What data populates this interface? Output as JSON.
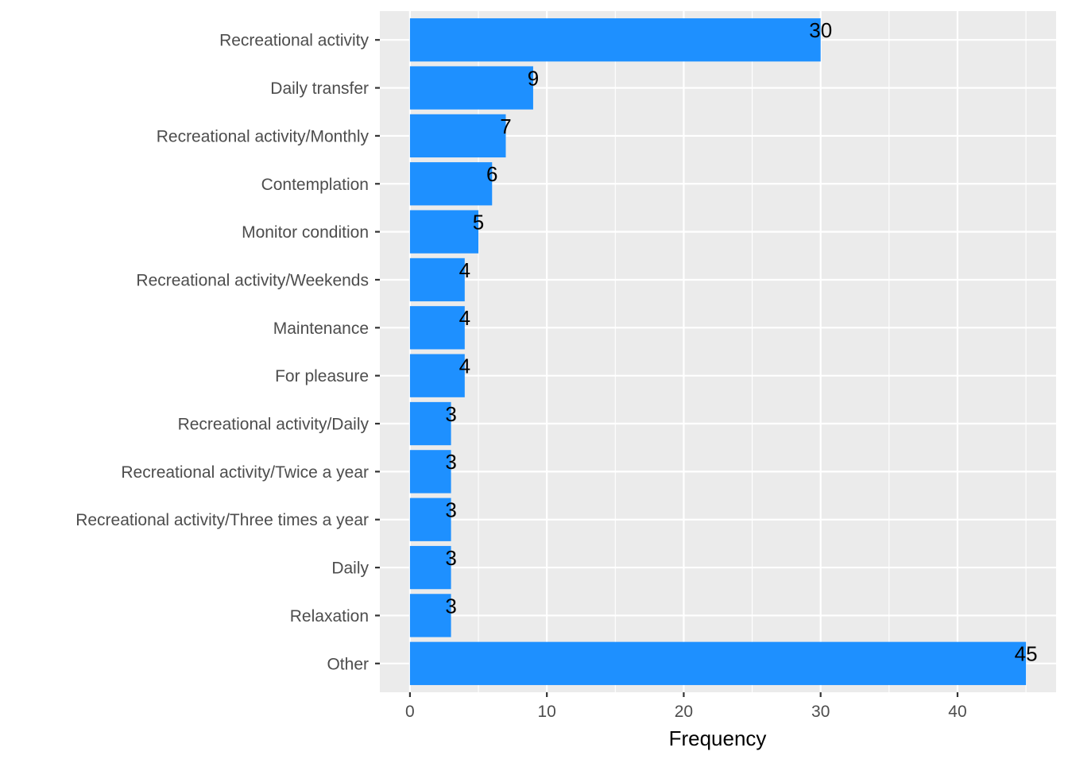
{
  "chart_data": {
    "type": "bar",
    "orientation": "horizontal",
    "categories": [
      "Recreational activity",
      "Daily transfer",
      "Recreational activity/Monthly",
      "Contemplation",
      "Monitor condition",
      "Recreational activity/Weekends",
      "Maintenance",
      "For pleasure",
      "Recreational activity/Daily",
      "Recreational activity/Twice a year",
      "Recreational activity/Three times a year",
      "Daily",
      "Relaxation",
      "Other"
    ],
    "values": [
      30,
      9,
      7,
      6,
      5,
      4,
      4,
      4,
      3,
      3,
      3,
      3,
      3,
      45
    ],
    "data_labels": [
      "30",
      "9",
      "7",
      "6",
      "5",
      "4",
      "4",
      "4",
      "3",
      "3",
      "3",
      "3",
      "3",
      "45"
    ],
    "xlabel": "Frequency",
    "ylabel": "",
    "xlim": [
      -2.2,
      47.2
    ],
    "x_ticks": [
      "0",
      "10",
      "20",
      "30",
      "40"
    ],
    "grid": true,
    "colors": {
      "bar": "#1E90FF",
      "panel_background": "#EBEBEB",
      "grid": "#FFFFFF"
    }
  }
}
